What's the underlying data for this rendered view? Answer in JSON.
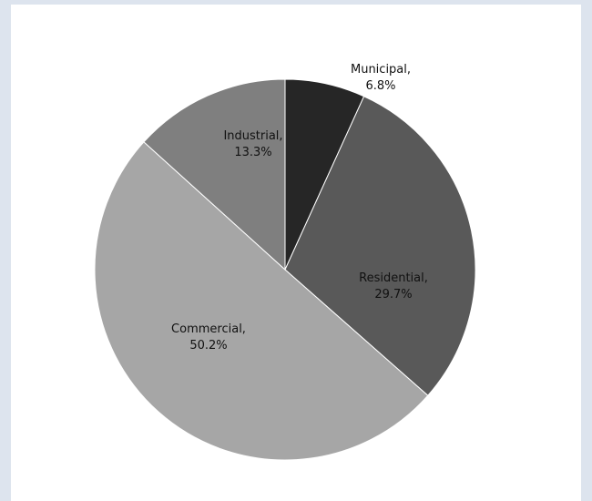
{
  "chart_data": {
    "type": "pie",
    "slices": [
      {
        "category": "Municipal",
        "value": 6.8,
        "label_line1": "Municipal,",
        "label_line2": "6.8%",
        "color": "#262626"
      },
      {
        "category": "Residential",
        "value": 29.7,
        "label_line1": "Residential,",
        "label_line2": "29.7%",
        "color": "#595959"
      },
      {
        "category": "Commercial",
        "value": 50.2,
        "label_line1": "Commercial,",
        "label_line2": "50.2%",
        "color": "#a6a6a6"
      },
      {
        "category": "Industrial",
        "value": 13.3,
        "label_line1": "Industrial,",
        "label_line2": "13.3%",
        "color": "#7f7f7f"
      }
    ],
    "start_angle_degrees": 0,
    "direction": "clockwise",
    "legend": "none"
  },
  "colors": {
    "page_background": "#dde4ee",
    "panel_background": "#ffffff",
    "slice_border": "#ffffff"
  }
}
